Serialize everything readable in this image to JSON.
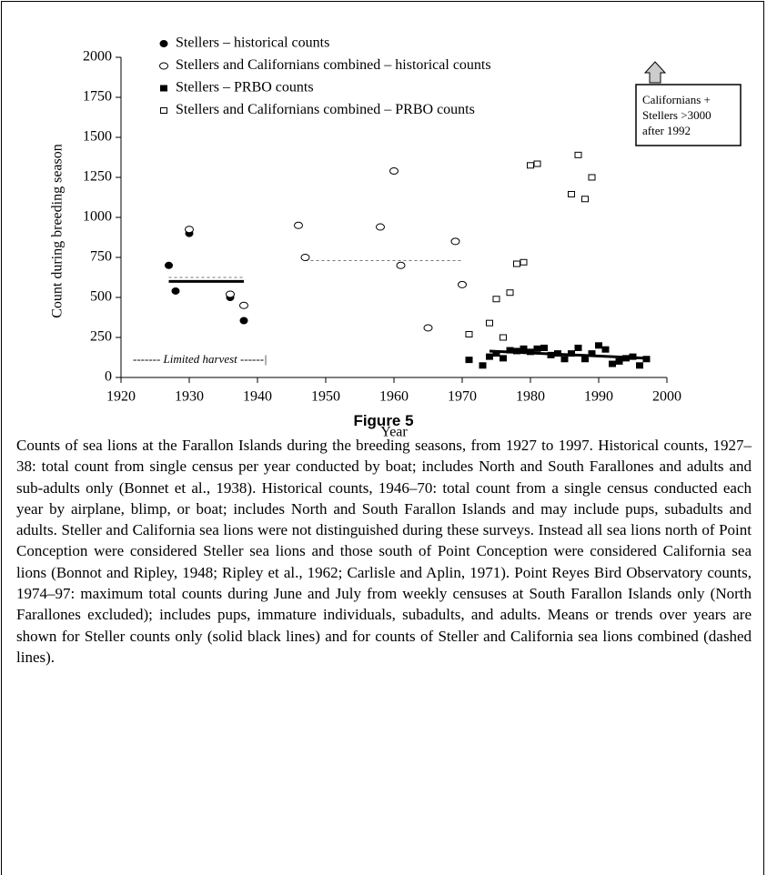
{
  "chart_data": {
    "type": "scatter",
    "xlabel": "Year",
    "ylabel": "Count during breeding season",
    "xlim": [
      1920,
      2000
    ],
    "xticks": [
      1920,
      1930,
      1940,
      1950,
      1960,
      1970,
      1980,
      1990,
      2000
    ],
    "ylim": [
      0,
      2000
    ],
    "yticks": [
      0,
      250,
      500,
      750,
      1000,
      1250,
      1500,
      1750,
      2000
    ],
    "series": [
      {
        "name": "Stellers – historical counts",
        "marker": "filled-circle",
        "color": "#000000",
        "x": [
          1927,
          1928,
          1930,
          1936,
          1938
        ],
        "values": [
          700,
          540,
          900,
          500,
          355
        ]
      },
      {
        "name": "Stellers and Californians combined – historical counts",
        "marker": "open-circle",
        "color": "#000000",
        "x": [
          1930,
          1936,
          1938,
          1946,
          1947,
          1958,
          1960,
          1961,
          1965,
          1969,
          1970
        ],
        "values": [
          925,
          520,
          450,
          950,
          750,
          940,
          1290,
          700,
          310,
          850,
          580
        ]
      },
      {
        "name": "Stellers – PRBO counts",
        "marker": "filled-square",
        "color": "#000000",
        "x": [
          1971,
          1973,
          1974,
          1975,
          1976,
          1977,
          1978,
          1979,
          1980,
          1981,
          1982,
          1983,
          1984,
          1985,
          1986,
          1987,
          1988,
          1989,
          1990,
          1991,
          1992,
          1993,
          1994,
          1995,
          1996,
          1997
        ],
        "values": [
          110,
          75,
          130,
          150,
          120,
          170,
          165,
          180,
          160,
          180,
          185,
          140,
          150,
          115,
          150,
          185,
          115,
          150,
          200,
          175,
          85,
          100,
          120,
          130,
          75,
          115
        ]
      },
      {
        "name": "Stellers and Californians combined – PRBO counts",
        "marker": "open-square",
        "color": "#000000",
        "x": [
          1971,
          1974,
          1975,
          1976,
          1977,
          1978,
          1979,
          1980,
          1981,
          1986,
          1987,
          1988,
          1989
        ],
        "values": [
          270,
          340,
          490,
          250,
          530,
          710,
          720,
          1325,
          1335,
          1145,
          1390,
          1115,
          1250
        ]
      }
    ],
    "lines": [
      {
        "style": "solid",
        "x": [
          1927,
          1938
        ],
        "values": [
          600,
          600
        ]
      },
      {
        "style": "dashed",
        "x": [
          1927,
          1938
        ],
        "values": [
          625,
          625
        ]
      },
      {
        "style": "dashed",
        "x": [
          1947,
          1970
        ],
        "values": [
          730,
          730
        ]
      },
      {
        "style": "solid",
        "x": [
          1974,
          1997
        ],
        "values": [
          165,
          120
        ]
      }
    ],
    "harvest_label": "------- Limited harvest ------|",
    "annotation_lines": [
      "Californians +",
      "Stellers >3000",
      "after 1992"
    ]
  },
  "figure_label": "Figure 5",
  "caption": "Counts of sea lions at the Farallon Islands during the breeding seasons, from 1927 to 1997. Historical counts, 1927–38: total count from single census per year conducted by boat; includes North and South Farallones and adults and sub-adults only (Bonnet et al., 1938). Historical counts, 1946–70: total count from a single census conducted each year by airplane, blimp, or boat; includes North and South Farallon Islands and may include pups, subadults and adults. Steller and California sea lions were not distinguished during these surveys. Instead all sea lions north of Point Conception were considered Steller sea lions and those south of Point Conception were considered California sea lions (Bonnot and Ripley, 1948; Ripley et al., 1962; Carlisle and Aplin, 1971). Point Reyes Bird Observatory counts, 1974–97: maximum total counts during June and July from weekly censuses at South Farallon Islands only (North Farallones excluded); includes pups, immature individuals, subadults, and adults. Means or trends over years are shown for Steller counts only (solid black lines) and for counts of Steller and California sea lions combined (dashed lines)."
}
